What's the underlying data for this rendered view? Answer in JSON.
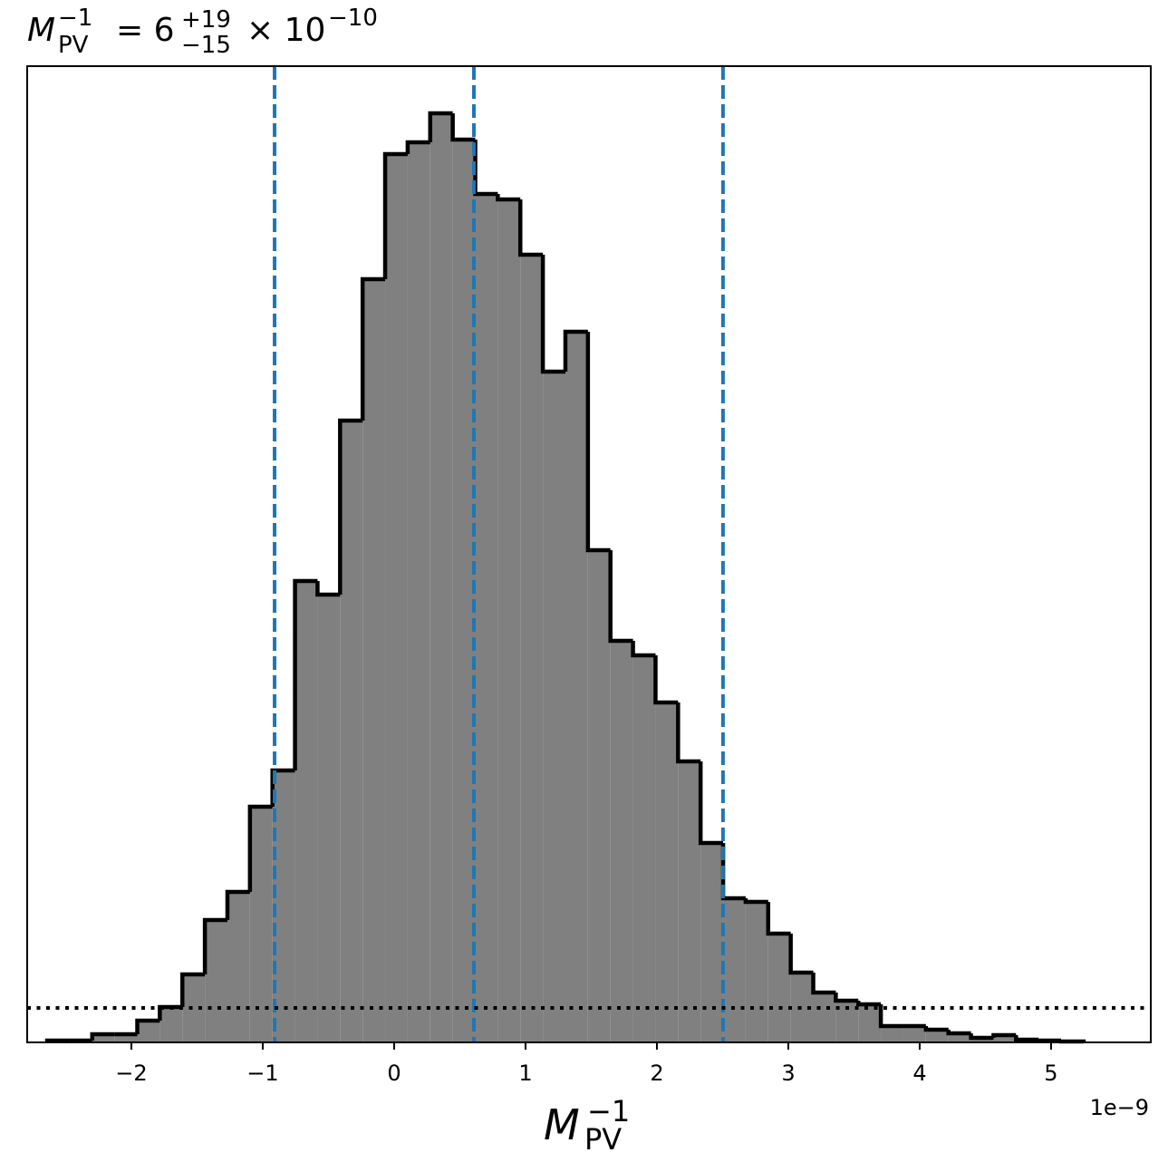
{
  "chart_data": {
    "type": "histogram",
    "title": {
      "symbol": "M",
      "sub": "PV",
      "sup": "−1",
      "eq": "= 6",
      "upper": "+19",
      "lower": "−15",
      "times": "× 10",
      "exp": "−10"
    },
    "x_label": {
      "symbol": "M",
      "sub": "PV",
      "sup": "−1"
    },
    "x_offset_label": "1e−9",
    "bins": [
      -2.641,
      -2.4695,
      -2.298,
      -2.1265,
      -1.955,
      -1.7835,
      -1.612,
      -1.4405,
      -1.269,
      -1.0975,
      -0.926,
      -0.7545,
      -0.583,
      -0.4115,
      -0.24,
      -0.0685,
      0.103,
      0.2745,
      0.446,
      0.6175,
      0.789,
      0.9605,
      1.132,
      1.3035,
      1.475,
      1.6465,
      1.818,
      1.9895,
      2.161,
      2.3325,
      2.504,
      2.6755,
      2.847,
      3.0185,
      3.19,
      3.3615,
      3.533,
      3.7045,
      3.876,
      4.0475,
      4.219,
      4.3905,
      4.562,
      4.7335,
      4.905,
      5.0765,
      5.248
    ],
    "values": [
      2,
      2,
      9,
      9,
      24,
      39,
      75,
      135,
      166,
      260,
      300,
      509,
      494,
      686,
      842,
      980,
      993,
      1025,
      996,
      936,
      930,
      869,
      740,
      784,
      543,
      443,
      427,
      375,
      310,
      220,
      159,
      155,
      120,
      77,
      55,
      46,
      42,
      18,
      18,
      14,
      10,
      5,
      8,
      3,
      2,
      1
    ],
    "color": "#808080",
    "edge_color": "#000000",
    "vlines": [
      -0.91,
      0.607,
      2.503
    ],
    "vline_color": "#1f77b4",
    "hline": 38,
    "xlim": [
      -2.793,
      5.759
    ],
    "ylim": [
      0,
      1077
    ],
    "xticks": [
      {
        "value": -2,
        "label": "−2"
      },
      {
        "value": -1,
        "label": "−1"
      },
      0,
      1,
      2,
      3,
      4,
      5
    ]
  }
}
